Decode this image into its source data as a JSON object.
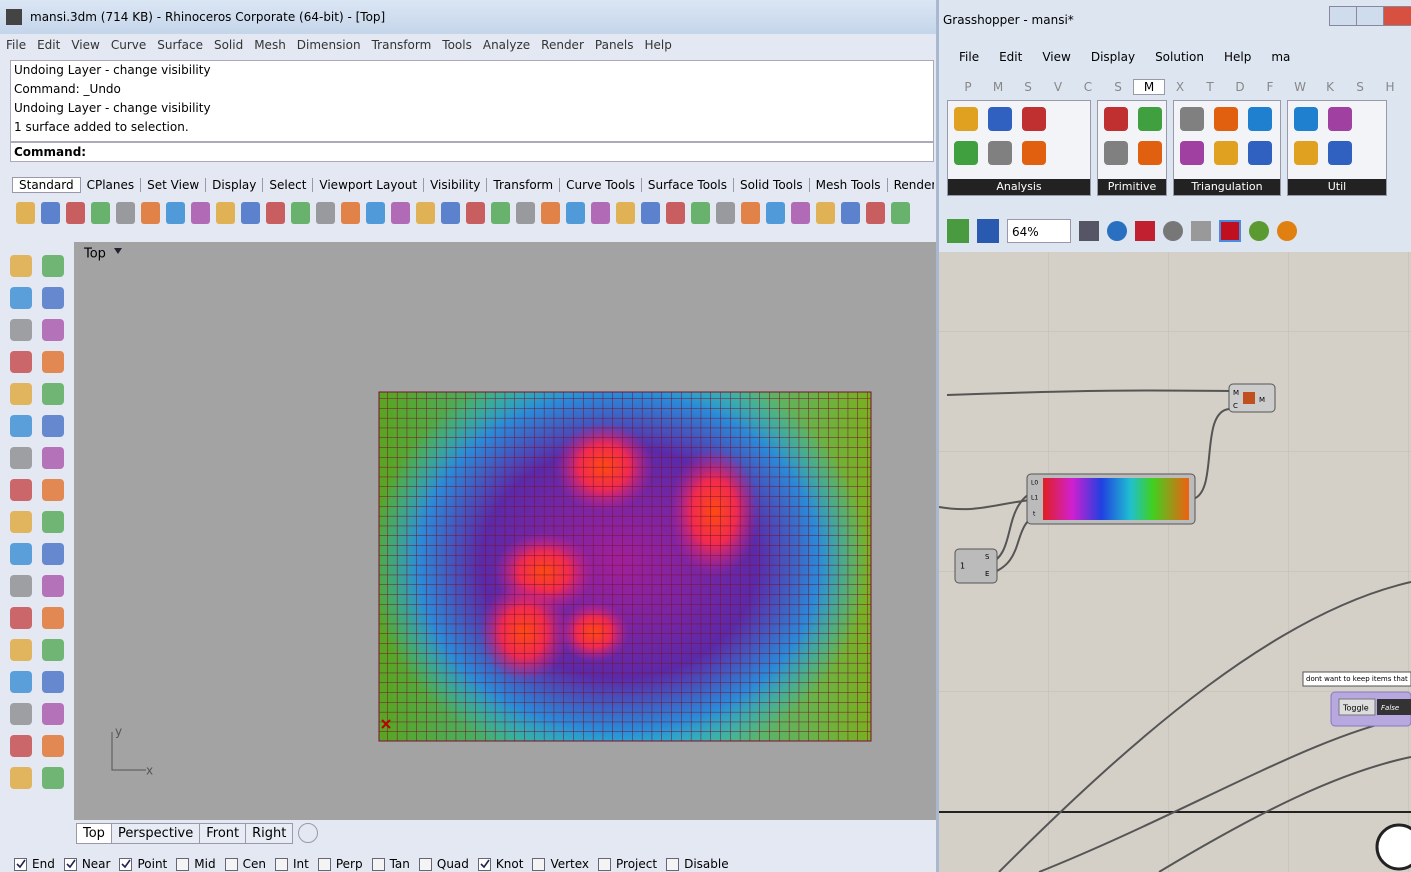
{
  "rhino": {
    "title": "mansi.3dm (714 KB) - Rhinoceros Corporate (64-bit) - [Top]",
    "menu": [
      "File",
      "Edit",
      "View",
      "Curve",
      "Surface",
      "Solid",
      "Mesh",
      "Dimension",
      "Transform",
      "Tools",
      "Analyze",
      "Render",
      "Panels",
      "Help"
    ],
    "history": [
      "Undoing Layer - change visibility",
      "Command: _Undo",
      "Undoing Layer - change visibility",
      "1 surface added to selection."
    ],
    "command_prompt": "Command:",
    "toolbar_tabs": [
      "Standard",
      "CPlanes",
      "Set View",
      "Display",
      "Select",
      "Viewport Layout",
      "Visibility",
      "Transform",
      "Curve Tools",
      "Surface Tools",
      "Solid Tools",
      "Mesh Tools",
      "Render Too"
    ],
    "viewport": {
      "name": "Top",
      "axis_y": "y",
      "axis_x": "x"
    },
    "viewport_tabs": [
      "Top",
      "Perspective",
      "Front",
      "Right"
    ],
    "osnaps": [
      {
        "label": "End",
        "checked": true
      },
      {
        "label": "Near",
        "checked": true
      },
      {
        "label": "Point",
        "checked": true
      },
      {
        "label": "Mid",
        "checked": false
      },
      {
        "label": "Cen",
        "checked": false
      },
      {
        "label": "Int",
        "checked": false
      },
      {
        "label": "Perp",
        "checked": false
      },
      {
        "label": "Tan",
        "checked": false
      },
      {
        "label": "Quad",
        "checked": false
      },
      {
        "label": "Knot",
        "checked": true
      },
      {
        "label": "Vertex",
        "checked": false
      },
      {
        "label": "Project",
        "checked": false
      },
      {
        "label": "Disable",
        "checked": false
      }
    ]
  },
  "grasshopper": {
    "title": "Grasshopper - mansi*",
    "menu": [
      "File",
      "Edit",
      "View",
      "Display",
      "Solution",
      "Help",
      "ma"
    ],
    "tabs": [
      "P",
      "M",
      "S",
      "V",
      "C",
      "S",
      "M",
      "X",
      "T",
      "D",
      "F",
      "W",
      "K",
      "S",
      "H"
    ],
    "active_tab": 6,
    "panel_groups": [
      "Analysis",
      "Primitive",
      "Triangulation",
      "Util"
    ],
    "zoom": "64%",
    "merge": {
      "inputs": [
        "M",
        "C"
      ],
      "output": "M"
    },
    "gradient": {
      "inputs": [
        "L0",
        "L1",
        "t"
      ]
    },
    "slider": {
      "value": "1",
      "outputs": [
        "S",
        "E"
      ]
    },
    "tooltip": "dont want to keep items that",
    "toggle": {
      "label": "Toggle",
      "value": "False"
    }
  }
}
